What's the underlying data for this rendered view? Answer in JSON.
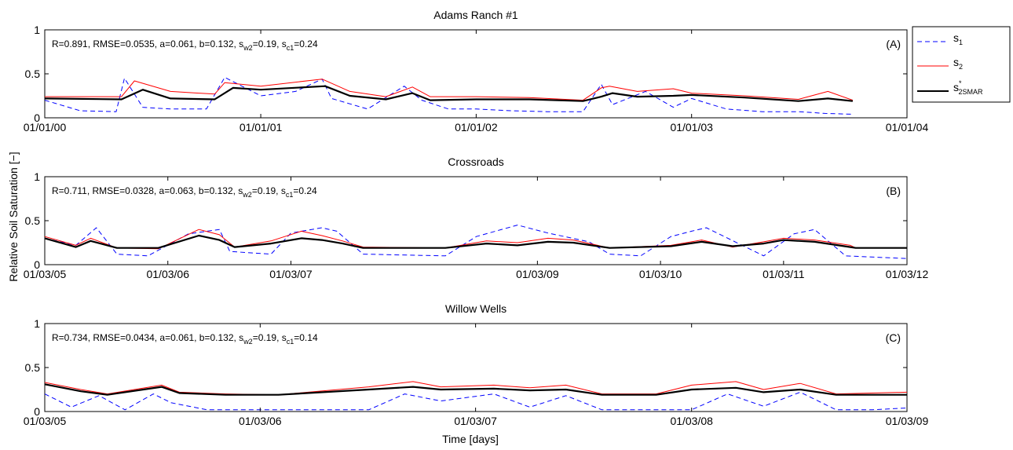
{
  "figure": {
    "ylabel": "Relative Soil Saturation [−]",
    "xlabel": "Time [days]"
  },
  "legend": {
    "items": [
      {
        "series": "s1",
        "base": "s",
        "sub": "1",
        "sup": "",
        "color": "#0000ff",
        "dash": "6,4"
      },
      {
        "series": "s2",
        "base": "s",
        "sub": "2",
        "sup": "",
        "color": "#ff0000",
        "dash": ""
      },
      {
        "series": "s2smar",
        "base": "s",
        "sub": "2SMAR",
        "sup": "*",
        "color": "#000000",
        "dash": ""
      }
    ]
  },
  "chart_data": [
    {
      "type": "line",
      "title": "Adams Ranch #1",
      "tag": "(A)",
      "stats": {
        "R": "0.891",
        "RMSE": "0.0535",
        "a": "0.061",
        "b": "0.132",
        "sw2": "0.19",
        "sc1": "0.24"
      },
      "ylim": [
        0,
        1
      ],
      "yticks": [
        "0",
        "0.5",
        "1"
      ],
      "xlim": [
        "2000-01-01",
        "2004-01-01"
      ],
      "xticks": [
        "01/01/00",
        "01/01/01",
        "01/01/02",
        "01/01/03",
        "01/01/04"
      ],
      "series": [
        {
          "id": "s1",
          "color": "#0000ff",
          "x": [
            "2000-01-01",
            "2000-03-01",
            "2000-05-01",
            "2000-05-15",
            "2000-06-15",
            "2000-08-01",
            "2000-10-01",
            "2000-11-01",
            "2001-01-01",
            "2001-03-01",
            "2001-04-15",
            "2001-05-01",
            "2001-07-01",
            "2001-09-01",
            "2001-10-01",
            "2001-11-15",
            "2002-01-01",
            "2002-03-01",
            "2002-05-01",
            "2002-07-01",
            "2002-08-01",
            "2002-08-20",
            "2002-10-15",
            "2002-12-01",
            "2003-01-01",
            "2003-03-01",
            "2003-05-01",
            "2003-07-01",
            "2003-08-15",
            "2003-10-01"
          ],
          "y": [
            0.2,
            0.08,
            0.07,
            0.45,
            0.12,
            0.1,
            0.1,
            0.46,
            0.25,
            0.3,
            0.44,
            0.22,
            0.1,
            0.36,
            0.2,
            0.1,
            0.1,
            0.08,
            0.07,
            0.07,
            0.38,
            0.15,
            0.3,
            0.12,
            0.22,
            0.1,
            0.07,
            0.07,
            0.05,
            0.04
          ]
        },
        {
          "id": "s2",
          "color": "#ff0000",
          "x": [
            "2000-01-01",
            "2000-05-10",
            "2000-06-01",
            "2000-08-01",
            "2000-10-15",
            "2000-11-01",
            "2001-01-01",
            "2001-04-15",
            "2001-06-01",
            "2001-08-01",
            "2001-09-15",
            "2001-10-15",
            "2002-01-01",
            "2002-04-01",
            "2002-07-01",
            "2002-08-01",
            "2002-08-15",
            "2002-10-01",
            "2002-12-01",
            "2003-01-01",
            "2003-04-01",
            "2003-07-01",
            "2003-08-20",
            "2003-10-01"
          ],
          "y": [
            0.24,
            0.24,
            0.42,
            0.3,
            0.27,
            0.4,
            0.36,
            0.44,
            0.3,
            0.24,
            0.35,
            0.24,
            0.24,
            0.23,
            0.2,
            0.34,
            0.36,
            0.3,
            0.33,
            0.28,
            0.25,
            0.21,
            0.3,
            0.2
          ]
        },
        {
          "id": "s2smar",
          "color": "#000000",
          "x": [
            "2000-01-01",
            "2000-05-10",
            "2000-06-15",
            "2000-08-01",
            "2000-10-15",
            "2000-11-15",
            "2001-01-01",
            "2001-04-20",
            "2001-06-01",
            "2001-08-01",
            "2001-09-15",
            "2001-10-15",
            "2002-01-01",
            "2002-04-01",
            "2002-07-01",
            "2002-08-01",
            "2002-08-20",
            "2002-10-01",
            "2002-12-01",
            "2003-01-01",
            "2003-04-01",
            "2003-07-01",
            "2003-08-20",
            "2003-10-01"
          ],
          "y": [
            0.22,
            0.21,
            0.32,
            0.22,
            0.21,
            0.34,
            0.32,
            0.36,
            0.25,
            0.21,
            0.28,
            0.2,
            0.21,
            0.21,
            0.19,
            0.24,
            0.28,
            0.24,
            0.25,
            0.26,
            0.23,
            0.19,
            0.22,
            0.19
          ]
        }
      ]
    },
    {
      "type": "line",
      "title": "Crossroads",
      "tag": "(B)",
      "stats": {
        "R": "0.711",
        "RMSE": "0.0328",
        "a": "0.063",
        "b": "0.132",
        "sw2": "0.19",
        "sc1": "0.24"
      },
      "ylim": [
        0,
        1
      ],
      "yticks": [
        "0",
        "0.5",
        "1"
      ],
      "xlim": [
        "2005-03-01",
        "2012-03-01"
      ],
      "xticks": [
        "01/03/05",
        "01/03/06",
        "01/03/07",
        "01/03/09",
        "01/03/10",
        "01/03/11",
        "01/03/12"
      ],
      "series": [
        {
          "id": "s1",
          "color": "#0000ff",
          "x": [
            "2005-03-01",
            "2005-06-01",
            "2005-08-01",
            "2005-10-01",
            "2006-01-01",
            "2006-05-01",
            "2006-08-01",
            "2006-09-01",
            "2007-01-01",
            "2007-03-01",
            "2007-06-01",
            "2007-07-15",
            "2007-10-01",
            "2008-06-01",
            "2008-09-01",
            "2009-01-01",
            "2009-04-01",
            "2009-08-01",
            "2009-10-01",
            "2010-01-01",
            "2010-04-01",
            "2010-06-01",
            "2010-07-15",
            "2011-01-01",
            "2011-04-01",
            "2011-06-01",
            "2011-09-01",
            "2012-03-01"
          ],
          "y": [
            0.3,
            0.22,
            0.42,
            0.12,
            0.1,
            0.35,
            0.4,
            0.15,
            0.12,
            0.36,
            0.42,
            0.38,
            0.12,
            0.1,
            0.32,
            0.45,
            0.36,
            0.26,
            0.12,
            0.1,
            0.32,
            0.38,
            0.42,
            0.1,
            0.35,
            0.4,
            0.1,
            0.07
          ]
        },
        {
          "id": "s2",
          "color": "#ff0000",
          "x": [
            "2005-03-01",
            "2005-06-01",
            "2005-07-15",
            "2005-10-01",
            "2006-02-01",
            "2006-06-01",
            "2006-08-01",
            "2006-09-15",
            "2007-01-01",
            "2007-04-01",
            "2007-06-01",
            "2007-08-01",
            "2007-10-01",
            "2008-06-01",
            "2008-10-01",
            "2009-01-01",
            "2009-04-01",
            "2009-06-15",
            "2009-10-01",
            "2010-04-01",
            "2010-07-01",
            "2010-10-01",
            "2011-01-01",
            "2011-03-01",
            "2011-06-01",
            "2011-09-15",
            "2011-10-01",
            "2012-03-01"
          ],
          "y": [
            0.32,
            0.22,
            0.3,
            0.19,
            0.18,
            0.4,
            0.34,
            0.2,
            0.27,
            0.38,
            0.33,
            0.27,
            0.2,
            0.19,
            0.27,
            0.25,
            0.3,
            0.28,
            0.19,
            0.22,
            0.28,
            0.2,
            0.26,
            0.3,
            0.28,
            0.22,
            0.19,
            0.19
          ]
        },
        {
          "id": "s2smar",
          "color": "#000000",
          "x": [
            "2005-03-01",
            "2005-06-01",
            "2005-07-15",
            "2005-10-01",
            "2006-02-01",
            "2006-06-01",
            "2006-08-01",
            "2006-09-15",
            "2007-01-01",
            "2007-04-01",
            "2007-06-01",
            "2007-08-01",
            "2007-10-01",
            "2008-06-01",
            "2008-10-01",
            "2009-01-01",
            "2009-04-01",
            "2009-06-15",
            "2009-10-01",
            "2010-04-01",
            "2010-07-01",
            "2010-10-01",
            "2011-01-01",
            "2011-03-01",
            "2011-06-01",
            "2011-09-15",
            "2011-10-01",
            "2012-03-01"
          ],
          "y": [
            0.3,
            0.2,
            0.27,
            0.19,
            0.19,
            0.33,
            0.28,
            0.2,
            0.24,
            0.3,
            0.28,
            0.24,
            0.19,
            0.19,
            0.24,
            0.22,
            0.26,
            0.25,
            0.19,
            0.21,
            0.26,
            0.21,
            0.24,
            0.28,
            0.26,
            0.2,
            0.19,
            0.19
          ]
        }
      ]
    },
    {
      "type": "line",
      "title": "Willow Wells",
      "tag": "(C)",
      "stats": {
        "R": "0.734",
        "RMSE": "0.0434",
        "a": "0.061",
        "b": "0.132",
        "sw2": "0.19",
        "sc1": "0.14"
      },
      "ylim": [
        0,
        1
      ],
      "yticks": [
        "0",
        "0.5",
        "1"
      ],
      "xlim": [
        "2005-03-01",
        "2009-03-01"
      ],
      "xticks": [
        "01/03/05",
        "01/03/06",
        "01/03/07",
        "01/03/08",
        "01/03/09"
      ],
      "series": [
        {
          "id": "s1",
          "color": "#0000ff",
          "x": [
            "2005-03-01",
            "2005-04-15",
            "2005-06-01",
            "2005-07-15",
            "2005-09-01",
            "2005-10-01",
            "2005-12-01",
            "2006-03-01",
            "2006-06-01",
            "2006-09-01",
            "2006-11-01",
            "2007-01-01",
            "2007-04-01",
            "2007-06-01",
            "2007-08-01",
            "2007-10-01",
            "2008-01-01",
            "2008-03-01",
            "2008-05-01",
            "2008-07-01",
            "2008-09-01",
            "2008-11-01",
            "2009-01-01",
            "2009-03-01"
          ],
          "y": [
            0.2,
            0.05,
            0.18,
            0.02,
            0.2,
            0.1,
            0.02,
            0.02,
            0.02,
            0.02,
            0.2,
            0.12,
            0.2,
            0.05,
            0.18,
            0.02,
            0.02,
            0.02,
            0.2,
            0.06,
            0.22,
            0.02,
            0.02,
            0.04
          ]
        },
        {
          "id": "s2",
          "color": "#ff0000",
          "x": [
            "2005-03-01",
            "2005-05-01",
            "2005-06-15",
            "2005-09-15",
            "2005-10-15",
            "2006-01-01",
            "2006-04-01",
            "2006-09-01",
            "2006-11-15",
            "2007-01-01",
            "2007-04-01",
            "2007-06-01",
            "2007-08-01",
            "2007-10-01",
            "2008-01-01",
            "2008-03-01",
            "2008-05-15",
            "2008-07-01",
            "2008-09-01",
            "2008-11-01",
            "2009-03-01"
          ],
          "y": [
            0.33,
            0.25,
            0.2,
            0.3,
            0.22,
            0.2,
            0.19,
            0.28,
            0.34,
            0.28,
            0.3,
            0.27,
            0.3,
            0.2,
            0.2,
            0.3,
            0.34,
            0.25,
            0.32,
            0.2,
            0.22
          ]
        },
        {
          "id": "s2smar",
          "color": "#000000",
          "x": [
            "2005-03-01",
            "2005-05-01",
            "2005-06-15",
            "2005-09-15",
            "2005-10-15",
            "2006-01-01",
            "2006-04-01",
            "2006-09-01",
            "2006-11-15",
            "2007-01-01",
            "2007-04-01",
            "2007-06-01",
            "2007-08-01",
            "2007-10-01",
            "2008-01-01",
            "2008-03-01",
            "2008-05-15",
            "2008-07-01",
            "2008-09-01",
            "2008-11-01",
            "2009-03-01"
          ],
          "y": [
            0.31,
            0.23,
            0.19,
            0.28,
            0.21,
            0.19,
            0.19,
            0.25,
            0.28,
            0.25,
            0.26,
            0.24,
            0.25,
            0.19,
            0.19,
            0.25,
            0.27,
            0.22,
            0.25,
            0.19,
            0.19
          ]
        }
      ]
    }
  ]
}
